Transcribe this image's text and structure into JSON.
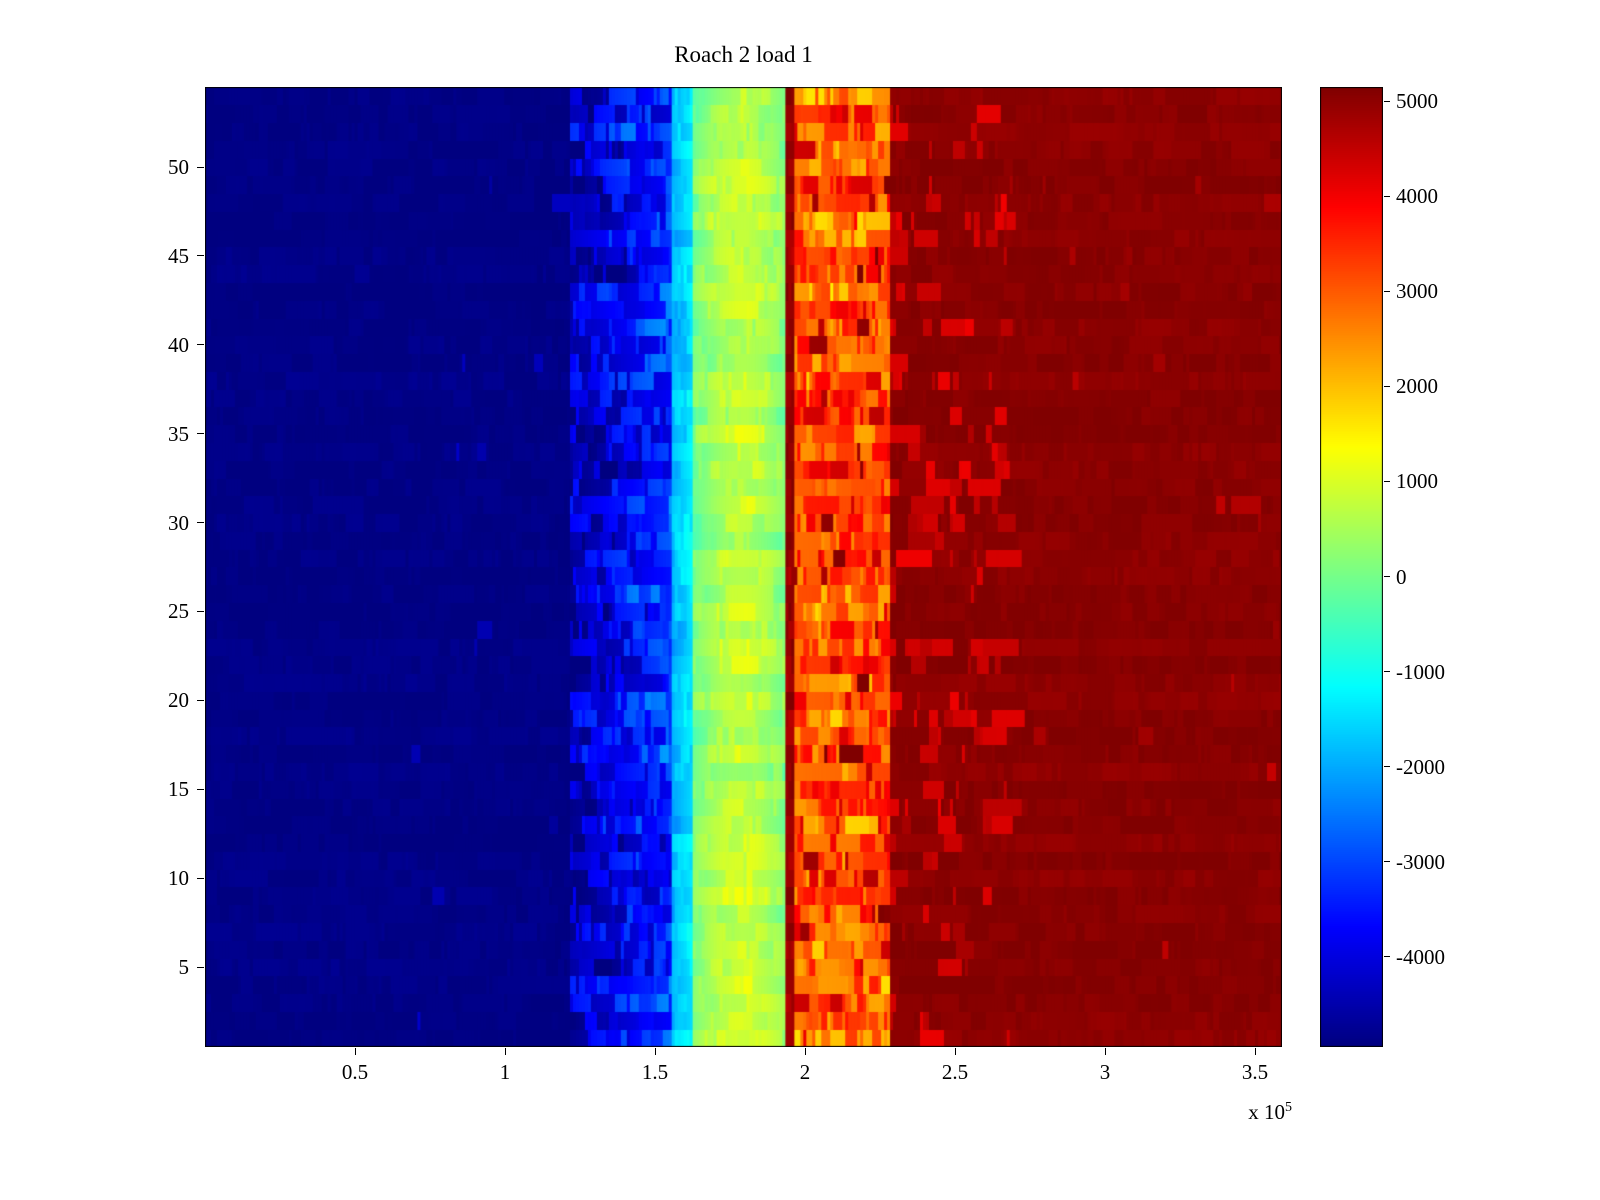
{
  "chart_data": {
    "type": "heatmap",
    "title": "Roach 2 load 1",
    "colormap": "jet",
    "background": "#ffffff",
    "x_range": [
      0,
      359000
    ],
    "y_range": [
      0.5,
      54.5
    ],
    "rows": 54,
    "color_axis": [
      -4950,
      5150
    ],
    "x_axis": {
      "ticks": [
        50000,
        100000,
        150000,
        200000,
        250000,
        300000,
        350000
      ],
      "tick_labels": [
        "0.5",
        "1",
        "1.5",
        "2",
        "2.5",
        "3",
        "3.5"
      ],
      "offset_prefix": "x 10",
      "offset_exponent": "5"
    },
    "y_axis": {
      "ticks": [
        5,
        10,
        15,
        20,
        25,
        30,
        35,
        40,
        45,
        50
      ],
      "tick_labels": [
        "5",
        "10",
        "15",
        "20",
        "25",
        "30",
        "35",
        "40",
        "45",
        "50"
      ]
    },
    "colorbar": {
      "ticks": [
        5000,
        4000,
        3000,
        2000,
        1000,
        0,
        -1000,
        -2000,
        -3000,
        -4000
      ],
      "tick_labels": [
        "5000",
        "4000",
        "3000",
        "2000",
        "1000",
        "0",
        "-1000",
        "-2000",
        "-3000",
        "-4000"
      ]
    },
    "bands": [
      {
        "x0": 0,
        "x1": 122000,
        "v0": -4900,
        "v1": -4900,
        "row_jitter": 60,
        "cell_jitter": 90,
        "run_prob": 0.3,
        "spikes": [
          {
            "prob": 0.015,
            "amp": 700,
            "x0_lim": 60000
          }
        ]
      },
      {
        "x0": 122000,
        "x1": 156000,
        "v0": -4300,
        "v1": -3100,
        "row_jitter": 500,
        "cell_jitter": 800,
        "run_prob": 0.4
      },
      {
        "x0": 156000,
        "x1": 163000,
        "v0": -1900,
        "v1": -1300,
        "row_jitter": 250,
        "cell_jitter": 300,
        "run_prob": 0.5
      },
      {
        "x0": 163000,
        "x1": 193000,
        "v0": 0,
        "v1": 200,
        "bump": 700,
        "row_jitter": 250,
        "cell_jitter": 300,
        "run_prob": 0.4
      },
      {
        "x0": 193000,
        "x1": 196000,
        "v0": 4900,
        "v1": 4900,
        "row_jitter": 200,
        "cell_jitter": 200,
        "run_prob": 0.5
      },
      {
        "x0": 196000,
        "x1": 228000,
        "v0": 2900,
        "v1": 3100,
        "row_jitter": 600,
        "cell_jitter": 800,
        "run_prob": 0.45,
        "spikes": [
          {
            "prob": 0.1,
            "amp": 1800
          },
          {
            "prob": 0.05,
            "amp": -900
          }
        ]
      },
      {
        "x0": 228000,
        "x1": 359000,
        "v0": 5050,
        "v1": 5050,
        "row_jitter": 80,
        "cell_jitter": 100,
        "run_prob": 0.3,
        "spikes": [
          {
            "prob": 0.22,
            "amp": -950,
            "x1_lim": 268000
          },
          {
            "prob": 0.01,
            "amp": -500
          }
        ]
      }
    ]
  }
}
